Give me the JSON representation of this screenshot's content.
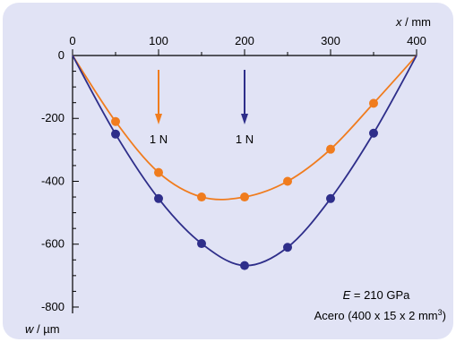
{
  "chart_data": {
    "type": "line",
    "xlabel_var": "x",
    "xlabel_unit": " / mm",
    "ylabel_var": "w",
    "ylabel_unit": " / µm",
    "xlim": [
      0,
      400
    ],
    "ylim": [
      -820,
      0
    ],
    "x_ticks": [
      0,
      100,
      200,
      300,
      400
    ],
    "y_ticks": [
      0,
      -200,
      -400,
      -600,
      -800
    ],
    "x_tick_labels": [
      "0",
      "100",
      "200",
      "300",
      "400"
    ],
    "y_tick_labels": [
      "0",
      "-200",
      "-400",
      "-600",
      "-800"
    ],
    "series": [
      {
        "color": "#f07c1e",
        "load_x": 100,
        "load_label": "1 N",
        "points": [
          {
            "x": 50,
            "y": -210
          },
          {
            "x": 100,
            "y": -372
          },
          {
            "x": 150,
            "y": -450
          },
          {
            "x": 200,
            "y": -450
          },
          {
            "x": 250,
            "y": -400
          },
          {
            "x": 300,
            "y": -298
          },
          {
            "x": 350,
            "y": -152
          }
        ]
      },
      {
        "color": "#2e2e8a",
        "load_x": 200,
        "load_label": "1 N",
        "points": [
          {
            "x": 50,
            "y": -250
          },
          {
            "x": 100,
            "y": -455
          },
          {
            "x": 150,
            "y": -598
          },
          {
            "x": 200,
            "y": -668
          },
          {
            "x": 250,
            "y": -610
          },
          {
            "x": 300,
            "y": -455
          },
          {
            "x": 350,
            "y": -247
          }
        ]
      }
    ],
    "annotation_var": "E",
    "annotation_value": " = 210 GPa",
    "annotation_material": "Acero (400 x 15 x 2 mm",
    "annotation_sup": "3",
    "annotation_close": ")",
    "background_color": "#e1e3f5"
  }
}
